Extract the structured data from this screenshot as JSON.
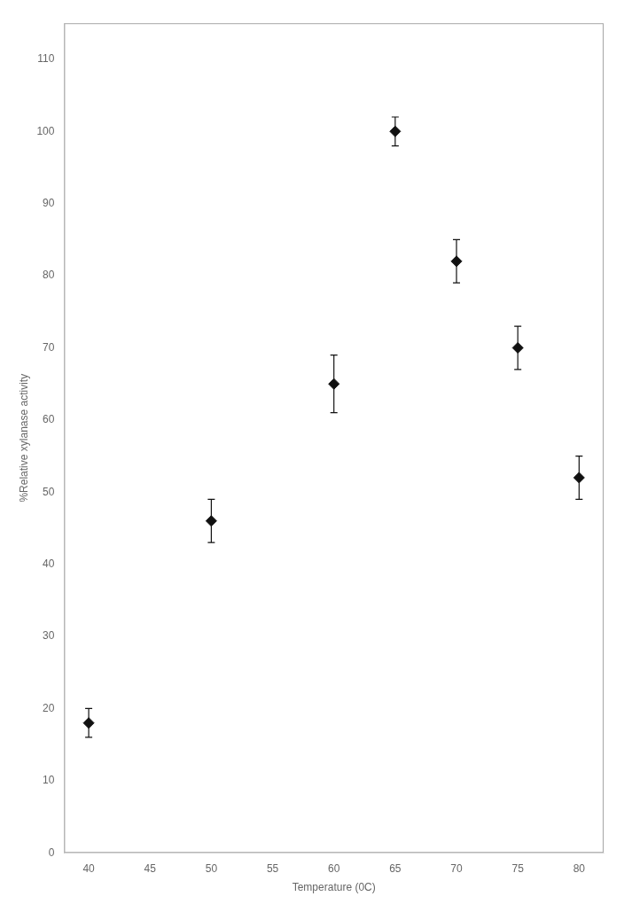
{
  "chart_data": {
    "type": "scatter",
    "x": [
      40,
      50,
      60,
      65,
      70,
      75,
      80
    ],
    "values": [
      18,
      46,
      65,
      100,
      82,
      70,
      52
    ],
    "yerr": [
      2,
      3,
      4,
      2,
      3,
      3,
      3
    ],
    "xlabel": "Temperature (0C)",
    "ylabel": "%Relative xylanase activity",
    "xlim": [
      38,
      82
    ],
    "ylim": [
      0,
      115
    ],
    "xticks": [
      40,
      45,
      50,
      55,
      60,
      65,
      70,
      75,
      80
    ],
    "yticks": [
      0,
      10,
      20,
      30,
      40,
      50,
      60,
      70,
      80,
      90,
      100,
      110
    ],
    "color": "#111111",
    "marker": "diamond",
    "grid": false
  }
}
